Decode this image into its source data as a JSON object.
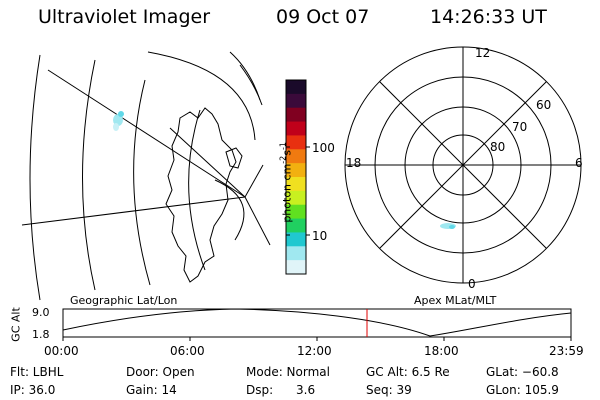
{
  "header": {
    "instrument": "Ultraviolet Imager",
    "date": "09 Oct 07",
    "time": "14:26:33 UT"
  },
  "colorbar": {
    "unit_label": "photon cm",
    "unit_exp1": "-2",
    "unit_s": "s",
    "unit_exp2": "-1",
    "tick_100": "100",
    "tick_10": "10",
    "colors": [
      "#1a0a2a",
      "#3a0a3a",
      "#800020",
      "#c0001a",
      "#e83010",
      "#f07a10",
      "#f2b010",
      "#f0e020",
      "#c8f020",
      "#60e020",
      "#20d060",
      "#20c8d0",
      "#a0e8f0",
      "#e0f4f8"
    ]
  },
  "polar_plot": {
    "hour_12": "12",
    "hour_18": "18",
    "hour_6": "6",
    "hour_0": "0",
    "lat_60": "60",
    "lat_70": "70",
    "lat_80": "80"
  },
  "timeline": {
    "left_label": "Geographic Lat/Lon",
    "right_label": "Apex MLat/MLT",
    "yaxis_label": "GC Alt",
    "ytick_top": "9.0",
    "ytick_bottom": "1.8",
    "xticks": [
      "00:00",
      "06:00",
      "12:00",
      "18:00",
      "23:59"
    ]
  },
  "status": {
    "flt": "Flt: LBHL",
    "ip": "IP: 36.0",
    "door": "Door: Open",
    "gain": "Gain: 14",
    "mode": "Mode: Normal",
    "dsp": "Dsp:      3.6",
    "gcalt": "GC Alt: 6.5 Re",
    "seq": "Seq: 39",
    "glat": "GLat: −60.8",
    "glon": "GLon: 105.9"
  }
}
